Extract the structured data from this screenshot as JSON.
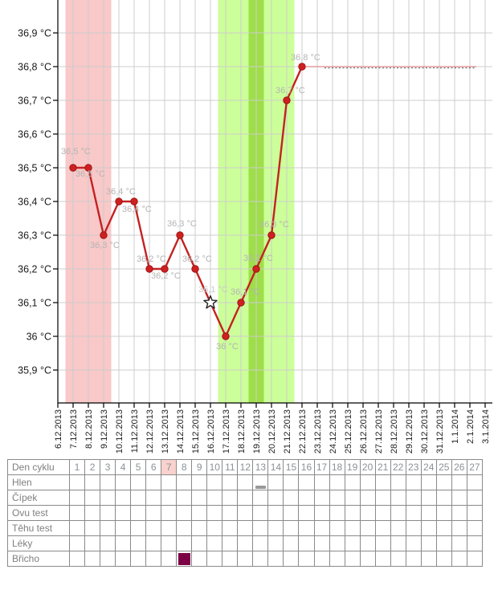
{
  "chart_data": {
    "type": "line",
    "title": "",
    "ylabel": "°C",
    "ylim": [
      35.82,
      36.98
    ],
    "grid": true,
    "x": [
      "6.12.2013",
      "7.12.2013",
      "8.12.2013",
      "9.12.2013",
      "10.12.2013",
      "11.12.2013",
      "12.12.2013",
      "13.12.2013",
      "14.12.2013",
      "15.12.2013",
      "16.12.2013",
      "17.12.2013",
      "18.12.2013",
      "19.12.2013",
      "20.12.2013",
      "21.12.2013",
      "22.12.2013",
      "23.12.2013",
      "24.12.2013",
      "25.12.2013",
      "26.12.2013",
      "27.12.2013",
      "28.12.2013",
      "29.12.2013",
      "30.12.2013",
      "31.12.2013",
      "1.1.2014",
      "2.1.2014",
      "3.1.2014"
    ],
    "y_ticks": [
      {
        "value": 36.9,
        "label": "36,9 °C"
      },
      {
        "value": 36.8,
        "label": "36,8 °C"
      },
      {
        "value": 36.7,
        "label": "36,7 °C"
      },
      {
        "value": 36.6,
        "label": "36,6 °C"
      },
      {
        "value": 36.5,
        "label": "36,5 °C"
      },
      {
        "value": 36.4,
        "label": "36,4 °C"
      },
      {
        "value": 36.3,
        "label": "36,3 °C"
      },
      {
        "value": 36.2,
        "label": "36,2 °C"
      },
      {
        "value": 36.1,
        "label": "36,1 °C"
      },
      {
        "value": 36.0,
        "label": "36 °C"
      },
      {
        "value": 35.9,
        "label": "35,9 °C"
      }
    ],
    "series": [
      {
        "name": "basal-temperature",
        "points": [
          {
            "date": "7.12.2013",
            "value": 36.5,
            "label": "36,5 °C",
            "marker": "dot",
            "dx": -15,
            "dy": -26
          },
          {
            "date": "8.12.2013",
            "value": 36.5,
            "label": "36,5 °C",
            "marker": "dot",
            "dx": -16,
            "dy": 2
          },
          {
            "date": "9.12.2013",
            "value": 36.3,
            "label": "36,3 °C",
            "marker": "dot",
            "dx": -17,
            "dy": 7
          },
          {
            "date": "10.12.2013",
            "value": 36.4,
            "label": "36,4 °C",
            "marker": "dot",
            "dx": -16,
            "dy": -18
          },
          {
            "date": "11.12.2013",
            "value": 36.4,
            "label": "36,4 °C",
            "marker": "dot",
            "dx": -15,
            "dy": 4
          },
          {
            "date": "12.12.2013",
            "value": 36.2,
            "label": "36,2 °C",
            "marker": "dot",
            "dx": -16,
            "dy": -18
          },
          {
            "date": "13.12.2013",
            "value": 36.2,
            "label": "36,2 °C",
            "marker": "dot",
            "dx": -17,
            "dy": 3
          },
          {
            "date": "14.12.2013",
            "value": 36.3,
            "label": "36,3 °C",
            "marker": "dot",
            "dx": -16,
            "dy": -20
          },
          {
            "date": "15.12.2013",
            "value": 36.2,
            "label": "36,2 °C",
            "marker": "dot",
            "dx": -16,
            "dy": -18
          },
          {
            "date": "16.12.2013",
            "value": 36.1,
            "label": "36,1 °C",
            "marker": "star",
            "dx": -15,
            "dy": -22
          },
          {
            "date": "17.12.2013",
            "value": 36.0,
            "label": "36 °C",
            "marker": "dot",
            "dx": -12,
            "dy": 7
          },
          {
            "date": "18.12.2013",
            "value": 36.1,
            "label": "36,1 °C",
            "marker": "dot",
            "dx": -13,
            "dy": -19
          },
          {
            "date": "19.12.2013",
            "value": 36.2,
            "label": "36,2 °C",
            "marker": "dot",
            "dx": -16,
            "dy": -19
          },
          {
            "date": "20.12.2013",
            "value": 36.3,
            "label": "36,3 °C",
            "marker": "dot",
            "dx": -15,
            "dy": -19
          },
          {
            "date": "21.12.2013",
            "value": 36.7,
            "label": "36,7 °C",
            "marker": "dot",
            "dx": -14,
            "dy": -18
          },
          {
            "date": "22.12.2013",
            "value": 36.8,
            "label": "36,8 °C",
            "marker": "dot",
            "dx": -14,
            "dy": -17
          }
        ]
      }
    ],
    "forecast": {
      "value": 36.8,
      "from": "22.12.2013"
    },
    "bands": [
      {
        "name": "menstruation",
        "from": "7.12.2013",
        "to": "9.12.2013",
        "color": "#f9c8c8"
      },
      {
        "name": "fertile-window",
        "from": "17.12.2013",
        "to": "21.12.2013",
        "color": "#ccff99"
      },
      {
        "name": "ovulation-day",
        "from": "19.12.2013",
        "to": "19.12.2013",
        "color": "#9ede49"
      }
    ],
    "legend_position": "none"
  },
  "table": {
    "day_count": 27,
    "days": [
      1,
      2,
      3,
      4,
      5,
      6,
      7,
      8,
      9,
      10,
      11,
      12,
      13,
      14,
      15,
      16,
      17,
      18,
      19,
      20,
      21,
      22,
      23,
      24,
      25,
      26,
      27
    ],
    "highlight_day": 7,
    "rows": [
      {
        "label": "Den cyklu",
        "kind": "day-numbers",
        "marks": []
      },
      {
        "label": "Hlen",
        "kind": "marks",
        "marks": [
          {
            "day": 13,
            "type": "bar"
          }
        ]
      },
      {
        "label": "Čípek",
        "kind": "marks",
        "marks": []
      },
      {
        "label": "Ovu test",
        "kind": "marks",
        "marks": []
      },
      {
        "label": "Těhu test",
        "kind": "marks",
        "marks": []
      },
      {
        "label": "Léky",
        "kind": "marks",
        "marks": []
      },
      {
        "label": "Břicho",
        "kind": "marks",
        "marks": [
          {
            "day": 8,
            "type": "square"
          }
        ]
      }
    ]
  },
  "colors": {
    "line": "#c32222",
    "point_fill": "#cf2020",
    "point_stroke": "#9e1414",
    "grid": "#cccccc",
    "axis": "#000000",
    "tick_label": "#1a1a1a",
    "point_label": "#b4b4b4",
    "star_label": "#c9c9c9",
    "star_fill": "#ffffff",
    "star_stroke": "#222222",
    "forecast_red": "#dd8888",
    "forecast_dot": "#555555",
    "day_highlight": "#f9d2cd",
    "mucus_mark": "#999999",
    "belly_mark": "#7c0046"
  }
}
